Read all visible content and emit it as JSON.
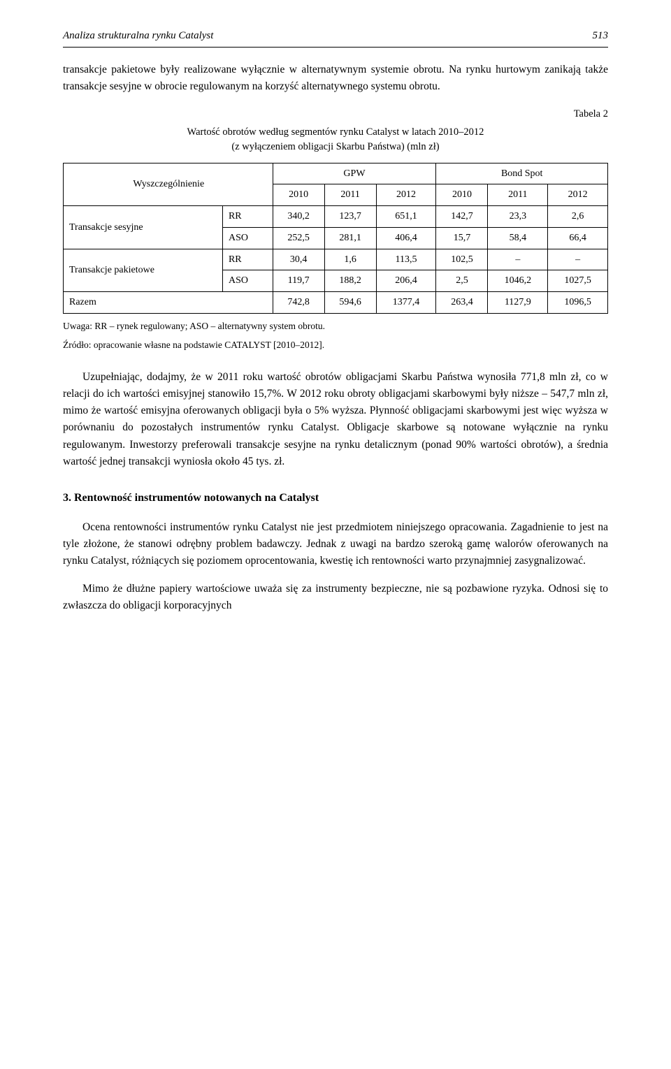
{
  "header": {
    "title": "Analiza strukturalna rynku Catalyst",
    "page": "513"
  },
  "intro_paragraph": "transakcje pakietowe były realizowane wyłącznie w alternatywnym systemie obrotu. Na rynku hurtowym zanikają także transakcje sesyjne w obrocie regulowanym na korzyść alternatywnego systemu obrotu.",
  "table": {
    "label": "Tabela 2",
    "title_l1": "Wartość obrotów według segmentów rynku Catalyst w latach 2010–2012",
    "title_l2": "(z wyłączeniem obligacji Skarbu Państwa) (mln zł)",
    "col_group_label": "Wyszczególnienie",
    "group_header_gpw": "GPW",
    "group_header_bond": "Bond Spot",
    "year_2010": "2010",
    "year_2011": "2011",
    "year_2012": "2012",
    "rows": [
      {
        "group": "Transakcje sesyjne",
        "sub": "RR",
        "v": [
          "340,2",
          "123,7",
          "651,1",
          "142,7",
          "23,3",
          "2,6"
        ]
      },
      {
        "group": "",
        "sub": "ASO",
        "v": [
          "252,5",
          "281,1",
          "406,4",
          "15,7",
          "58,4",
          "66,4"
        ]
      },
      {
        "group": "Transakcje pakietowe",
        "sub": "RR",
        "v": [
          "30,4",
          "1,6",
          "113,5",
          "102,5",
          "–",
          "–"
        ]
      },
      {
        "group": "",
        "sub": "ASO",
        "v": [
          "119,7",
          "188,2",
          "206,4",
          "2,5",
          "1046,2",
          "1027,5"
        ]
      },
      {
        "group": "Razem",
        "sub": "",
        "v": [
          "742,8",
          "594,6",
          "1377,4",
          "263,4",
          "1127,9",
          "1096,5"
        ]
      }
    ],
    "note": "Uwaga: RR – rynek regulowany; ASO – alternatywny system obrotu.",
    "source": "Źródło: opracowanie własne na podstawie CATALYST [2010–2012]."
  },
  "para2": "Uzupełniając, dodajmy, że w 2011 roku wartość obrotów obligacjami Skarbu Państwa wynosiła 771,8 mln zł, co w relacji do ich wartości emisyjnej stanowiło 15,7%. W 2012 roku obroty obligacjami skarbowymi były niższe – 547,7 mln zł, mimo że wartość emisyjna oferowanych obligacji była o 5% wyższa. Płynność obligacjami skarbowymi jest więc wyższa w porównaniu do pozostałych instrumentów rynku Catalyst. Obligacje skarbowe są notowane wyłącznie na rynku regulowanym. Inwestorzy preferowali transakcje sesyjne na rynku detalicznym (ponad 90% wartości obrotów), a średnia wartość jednej transakcji wyniosła około 45 tys. zł.",
  "section3": {
    "heading": "3.   Rentowność instrumentów notowanych na Catalyst",
    "para1": "Ocena rentowności instrumentów rynku Catalyst nie jest przedmiotem niniejszego opracowania. Zagadnienie to jest na tyle złożone, że stanowi odrębny problem badawczy. Jednak z uwagi na bardzo szeroką gamę walorów oferowanych na rynku Catalyst, różniących się poziomem oprocentowania, kwestię ich rentowności warto przynajmniej zasygnalizować.",
    "para2": "Mimo że dłużne papiery wartościowe uważa się za instrumenty bezpieczne, nie są pozbawione ryzyka. Odnosi się to zwłaszcza do obligacji korporacyjnych"
  },
  "colors": {
    "text": "#000000",
    "background": "#ffffff",
    "border": "#000000"
  }
}
